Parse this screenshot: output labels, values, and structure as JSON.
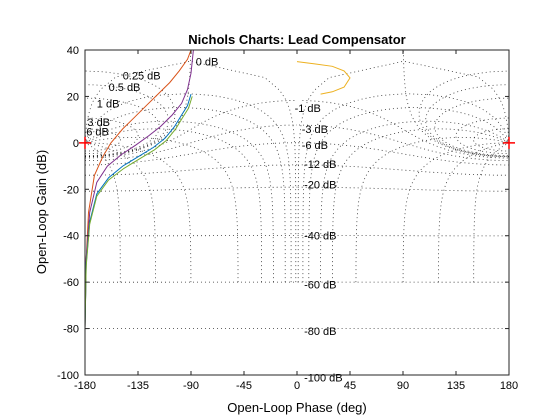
{
  "chart_data": {
    "type": "line",
    "title": "Nichols Charts: Lead Compensator",
    "xlabel": "Open-Loop Phase (deg)",
    "ylabel": "Open-Loop Gain (dB)",
    "xlim": [
      -180,
      180
    ],
    "ylim": [
      -100,
      40
    ],
    "xticks": [
      -180,
      -135,
      -90,
      -45,
      0,
      45,
      90,
      135,
      180
    ],
    "yticks": [
      -100,
      -80,
      -60,
      -40,
      -20,
      0,
      20,
      40
    ],
    "grid_labels": [
      {
        "text": "0 dB",
        "x": -86,
        "y": 35
      },
      {
        "text": "0.25 dB",
        "x": -148,
        "y": 29
      },
      {
        "text": "0.5 dB",
        "x": -160,
        "y": 24
      },
      {
        "text": "1 dB",
        "x": -170,
        "y": 17
      },
      {
        "text": "3 dB",
        "x": -178,
        "y": 9
      },
      {
        "text": "6 dB",
        "x": -179,
        "y": 5
      },
      {
        "text": "-1 dB",
        "x": -2,
        "y": 15
      },
      {
        "text": "-3 dB",
        "x": 4,
        "y": 6
      },
      {
        "text": "-6 dB",
        "x": 4,
        "y": -1
      },
      {
        "text": "-12 dB",
        "x": 6,
        "y": -9
      },
      {
        "text": "-20 dB",
        "x": 6,
        "y": -18
      },
      {
        "text": "-40 dB",
        "x": 6,
        "y": -40
      },
      {
        "text": "-60 dB",
        "x": 6,
        "y": -61
      },
      {
        "text": "-80 dB",
        "x": 6,
        "y": -81
      },
      {
        "text": "-100 dB",
        "x": 6,
        "y": -101
      }
    ],
    "critical_points": [
      {
        "x": -180,
        "y": 0
      },
      {
        "x": 180,
        "y": 0
      }
    ],
    "series": [
      {
        "color": "#d95319",
        "points": [
          [
            -180,
            -80
          ],
          [
            -179,
            -50
          ],
          [
            -177,
            -30
          ],
          [
            -172,
            -14
          ],
          [
            -165,
            -6
          ],
          [
            -158,
            0
          ],
          [
            -148,
            6
          ],
          [
            -138,
            11
          ],
          [
            -128,
            16
          ],
          [
            -118,
            21
          ],
          [
            -108,
            26
          ],
          [
            -100,
            31
          ],
          [
            -93,
            36
          ],
          [
            -90,
            40
          ]
        ]
      },
      {
        "color": "#7e2f8e",
        "points": [
          [
            -180,
            -80
          ],
          [
            -179,
            -50
          ],
          [
            -176,
            -30
          ],
          [
            -170,
            -17
          ],
          [
            -161,
            -10
          ],
          [
            -149,
            -5
          ],
          [
            -137,
            -1
          ],
          [
            -126,
            3
          ],
          [
            -116,
            7
          ],
          [
            -106,
            12
          ],
          [
            -98,
            17
          ],
          [
            -93,
            23
          ],
          [
            -90,
            30
          ],
          [
            -88,
            40
          ]
        ]
      },
      {
        "color": "#0072bd",
        "points": [
          [
            -180,
            -80
          ],
          [
            -179,
            -52
          ],
          [
            -176,
            -34
          ],
          [
            -170,
            -22
          ],
          [
            -160,
            -15
          ],
          [
            -148,
            -10
          ],
          [
            -135,
            -6
          ],
          [
            -122,
            -2
          ],
          [
            -112,
            2
          ],
          [
            -104,
            7
          ],
          [
            -98,
            12
          ],
          [
            -93,
            16
          ],
          [
            -90,
            21
          ]
        ]
      },
      {
        "color": "#77ac30",
        "points": [
          [
            -180,
            -80
          ],
          [
            -179,
            -53
          ],
          [
            -176,
            -35
          ],
          [
            -170,
            -23
          ],
          [
            -160,
            -16
          ],
          [
            -147,
            -11
          ],
          [
            -134,
            -7
          ],
          [
            -121,
            -3
          ],
          [
            -111,
            1
          ],
          [
            -103,
            6
          ],
          [
            -97,
            11
          ],
          [
            -92,
            15
          ],
          [
            -89,
            20
          ]
        ]
      },
      {
        "color": "#edb120",
        "points": [
          [
            0,
            35
          ],
          [
            15,
            34
          ],
          [
            30,
            33
          ],
          [
            40,
            31
          ],
          [
            45,
            28
          ],
          [
            40,
            24
          ],
          [
            30,
            22
          ],
          [
            20,
            21
          ]
        ]
      }
    ]
  }
}
